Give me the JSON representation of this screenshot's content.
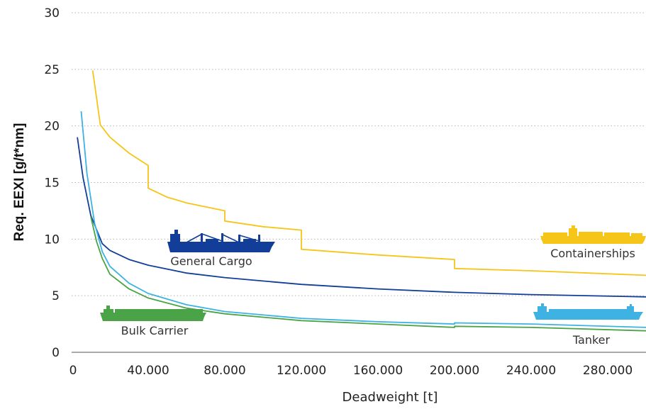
{
  "chart_data": {
    "type": "line",
    "title": "",
    "xlabel": "Deadweight [t]",
    "ylabel": "Req. EEXI [g/t*nm]",
    "xlim": [
      0,
      300000
    ],
    "ylim": [
      0,
      30
    ],
    "x_ticks": [
      40000,
      80000,
      120000,
      160000,
      200000,
      240000,
      280000
    ],
    "x_tick_labels": [
      "40.000",
      "80.000",
      "120.000",
      "160.000",
      "200.000",
      "240.000",
      "280.000"
    ],
    "y_ticks": [
      0,
      5,
      10,
      15,
      20,
      25,
      30
    ],
    "y_tick_labels": [
      "0",
      "5",
      "10",
      "15",
      "20",
      "25",
      "30"
    ],
    "grid": "horizontal dotted",
    "legend": "none (inline labels with ship icons)",
    "series": [
      {
        "name": "Containerships",
        "color": "#F5C518",
        "icon": "container-ship-icon",
        "points": [
          [
            11000,
            24.9
          ],
          [
            15000,
            20.1
          ],
          [
            20000,
            19.0
          ],
          [
            30000,
            17.6
          ],
          [
            39999,
            16.5
          ],
          [
            40000,
            14.5
          ],
          [
            50000,
            13.7
          ],
          [
            60000,
            13.2
          ],
          [
            79999,
            12.5
          ],
          [
            80000,
            11.6
          ],
          [
            100000,
            11.1
          ],
          [
            119999,
            10.8
          ],
          [
            120000,
            9.1
          ],
          [
            160000,
            8.6
          ],
          [
            199999,
            8.2
          ],
          [
            200000,
            7.4
          ],
          [
            240000,
            7.2
          ],
          [
            300000,
            6.8
          ]
        ]
      },
      {
        "name": "General Cargo",
        "color": "#123E99",
        "icon": "general-cargo-ship-icon",
        "points": [
          [
            3000,
            19.0
          ],
          [
            6000,
            15.4
          ],
          [
            10000,
            12.1
          ],
          [
            16000,
            9.6
          ],
          [
            20000,
            9.0
          ],
          [
            30000,
            8.2
          ],
          [
            40000,
            7.7
          ],
          [
            60000,
            7.0
          ],
          [
            80000,
            6.6
          ],
          [
            120000,
            6.0
          ],
          [
            160000,
            5.6
          ],
          [
            200000,
            5.3
          ],
          [
            240000,
            5.1
          ],
          [
            300000,
            4.9
          ]
        ]
      },
      {
        "name": "Tanker",
        "color": "#3DB2E3",
        "icon": "tanker-ship-icon",
        "points": [
          [
            5000,
            21.3
          ],
          [
            8000,
            15.8
          ],
          [
            12000,
            11.4
          ],
          [
            16000,
            8.9
          ],
          [
            20000,
            7.6
          ],
          [
            30000,
            6.1
          ],
          [
            40000,
            5.2
          ],
          [
            60000,
            4.2
          ],
          [
            80000,
            3.6
          ],
          [
            120000,
            3.0
          ],
          [
            160000,
            2.7
          ],
          [
            199999,
            2.5
          ],
          [
            200000,
            2.6
          ],
          [
            240000,
            2.5
          ],
          [
            300000,
            2.2
          ]
        ]
      },
      {
        "name": "Bulk Carrier",
        "color": "#4AA447",
        "icon": "bulk-carrier-ship-icon",
        "points": [
          [
            10000,
            12.0
          ],
          [
            13000,
            9.8
          ],
          [
            16000,
            8.3
          ],
          [
            20000,
            6.9
          ],
          [
            30000,
            5.6
          ],
          [
            40000,
            4.8
          ],
          [
            60000,
            3.9
          ],
          [
            80000,
            3.4
          ],
          [
            120000,
            2.8
          ],
          [
            160000,
            2.5
          ],
          [
            199999,
            2.2
          ],
          [
            200000,
            2.3
          ],
          [
            240000,
            2.2
          ],
          [
            300000,
            1.9
          ]
        ]
      }
    ]
  }
}
